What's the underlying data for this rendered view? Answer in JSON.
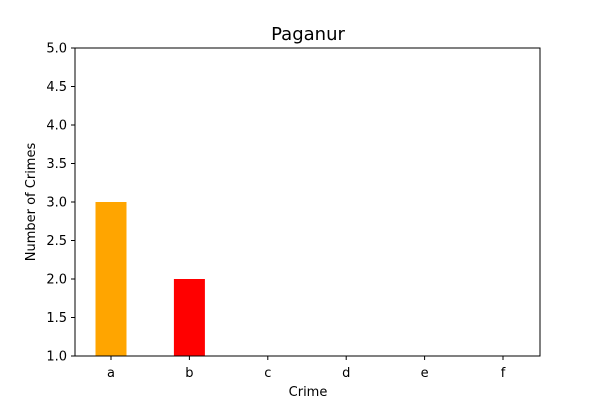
{
  "chart_data": {
    "type": "bar",
    "title": "Paganur",
    "xlabel": "Crime",
    "ylabel": "Number of Crimes",
    "categories": [
      "a",
      "b",
      "c",
      "d",
      "e",
      "f"
    ],
    "values": [
      3,
      2,
      1,
      1,
      1,
      1
    ],
    "bar_colors": [
      "#ffa500",
      "#ff0000",
      "#1f77b4",
      "#1f77b4",
      "#1f77b4",
      "#1f77b4"
    ],
    "ylim": [
      1.0,
      5.0
    ],
    "yticks": [
      "1.0",
      "1.5",
      "2.0",
      "2.5",
      "3.0",
      "3.5",
      "4.0",
      "4.5",
      "5.0"
    ],
    "grid": false,
    "legend": "none"
  }
}
